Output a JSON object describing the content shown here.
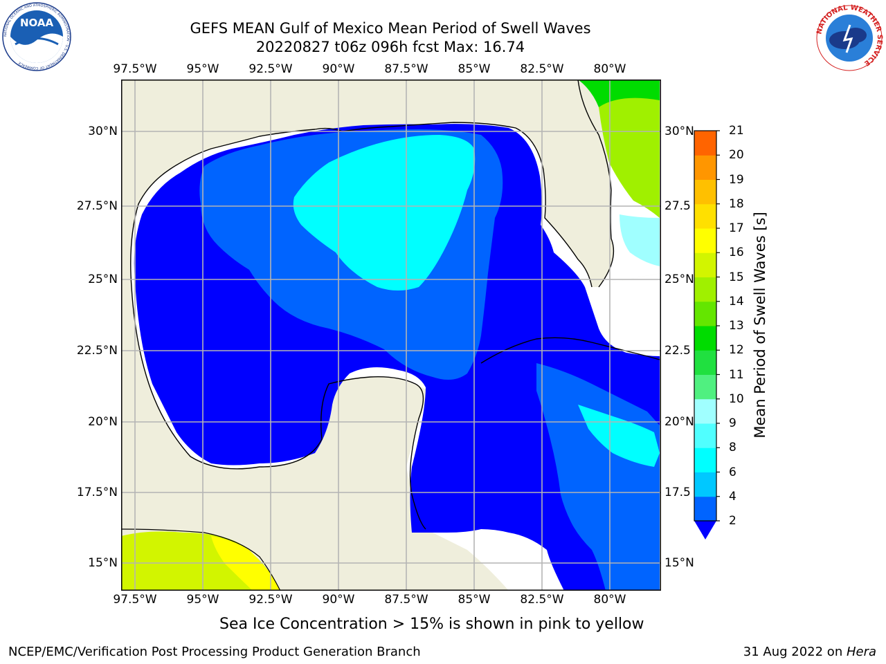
{
  "header": {
    "title_line1": "GEFS MEAN Gulf of Mexico Mean Period of Swell Waves",
    "title_line2": "20220827 t06z 096h fcst   Max: 16.74"
  },
  "logos": {
    "noaa": {
      "text": "NOAA",
      "ring_text": "NATIONAL OCEANIC AND ATMOSPHERIC ADMINISTRATION · U.S. DEPARTMENT OF COMMERCE"
    },
    "nws": {
      "ring_text": "NATIONAL WEATHER SERVICE"
    }
  },
  "map": {
    "lon_labels": [
      "97.5°W",
      "95°W",
      "92.5°W",
      "90°W",
      "87.5°W",
      "85°W",
      "82.5°W",
      "80°W"
    ],
    "lat_labels_left": [
      "30°N",
      "27.5°N",
      "25°N",
      "22.5°N",
      "20°N",
      "17.5°N",
      "15°N"
    ],
    "lat_labels_right": [
      "30°N",
      "27.5",
      "25°N",
      "22.5",
      "20°N",
      "17.5",
      "15°N"
    ],
    "colors": {
      "land": "#efeedc",
      "grid": "#b4b4b4",
      "no_data": "#ffffff",
      "coast": "#000000"
    }
  },
  "colorbar": {
    "title": "Mean Period of Swell Waves [s]",
    "tick_labels": [
      "2",
      "4",
      "6",
      "8",
      "9",
      "10",
      "11",
      "12",
      "13",
      "14",
      "15",
      "16",
      "17",
      "18",
      "19",
      "20",
      "21"
    ],
    "colors": [
      "#0064ff",
      "#00c8ff",
      "#00ffff",
      "#50ffff",
      "#a0ffff",
      "#50f080",
      "#20e040",
      "#00dc00",
      "#64e600",
      "#a0f000",
      "#d2f500",
      "#ffff00",
      "#ffe000",
      "#ffc000",
      "#ff9600",
      "#ff6400",
      "#ff3200",
      "#ff0000"
    ],
    "extend_color": "#0000ff"
  },
  "notes": {
    "ice": "Sea Ice Concentration > 15% is shown in pink to yellow"
  },
  "footer": {
    "left": "NCEP/EMC/Verification Post Processing Product Generation Branch",
    "right_date": "31 Aug 2022 on ",
    "right_host": "Hera"
  }
}
